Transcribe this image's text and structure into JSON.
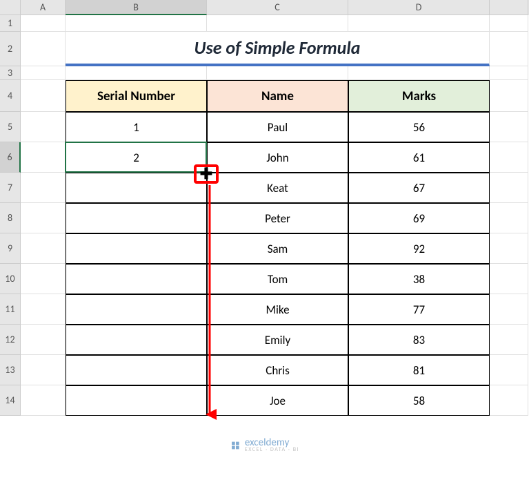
{
  "columns": {
    "A": "A",
    "B": "B",
    "C": "C",
    "D": "D"
  },
  "row_labels": [
    "1",
    "2",
    "3",
    "4",
    "5",
    "6",
    "7",
    "8",
    "9",
    "10",
    "11",
    "12",
    "13",
    "14"
  ],
  "title": "Use of Simple Formula",
  "headers": {
    "B": "Serial Number",
    "C": "Name",
    "D": "Marks"
  },
  "data": [
    {
      "serial": "1",
      "name": "Paul",
      "marks": "56"
    },
    {
      "serial": "2",
      "name": "John",
      "marks": "61"
    },
    {
      "serial": "",
      "name": "Keat",
      "marks": "67"
    },
    {
      "serial": "",
      "name": "Peter",
      "marks": "69"
    },
    {
      "serial": "",
      "name": "Sam",
      "marks": "92"
    },
    {
      "serial": "",
      "name": "Tom",
      "marks": "38"
    },
    {
      "serial": "",
      "name": "Mike",
      "marks": "77"
    },
    {
      "serial": "",
      "name": "Emily",
      "marks": "83"
    },
    {
      "serial": "",
      "name": "Chris",
      "marks": "81"
    },
    {
      "serial": "",
      "name": "Joe",
      "marks": "58"
    }
  ],
  "selected_cell": "B6",
  "colors": {
    "title_underline": "#4472c4",
    "header_B_bg": "#fff2cc",
    "header_C_bg": "#fce4d6",
    "header_D_bg": "#e2efda",
    "selection_border": "#217346",
    "annotation_red": "#ff0000",
    "grid_line": "#e0e0e0",
    "sheet_header_bg": "#e6e6e6"
  },
  "watermark": {
    "text": "exceldemy",
    "sub": "EXCEL · DATA · BI"
  },
  "annotations": {
    "fill_handle_highlight": true,
    "arrow_down_to_row": 14
  }
}
